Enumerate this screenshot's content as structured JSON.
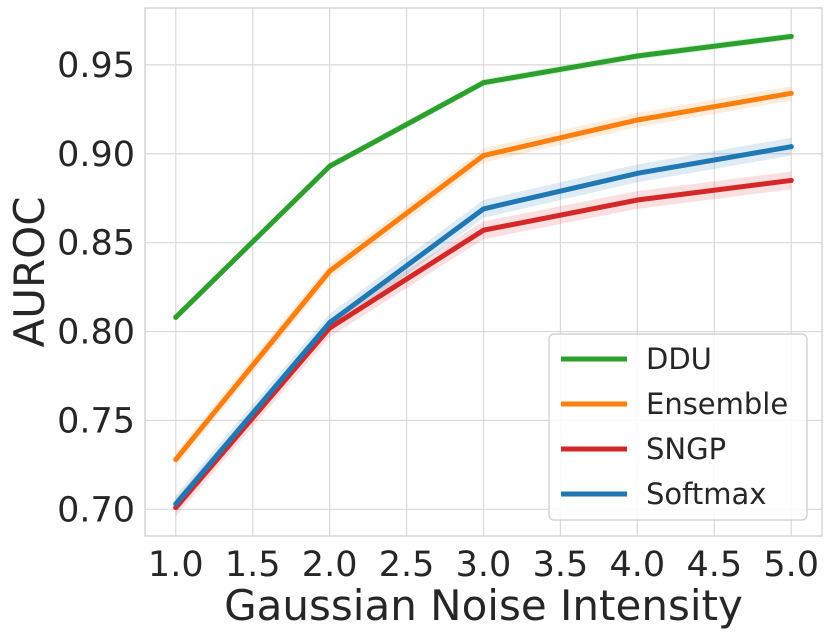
{
  "chart_data": {
    "type": "line",
    "title": "",
    "xlabel": "Gaussian Noise Intensity",
    "ylabel": "AUROC",
    "xlim": [
      0.8,
      5.2
    ],
    "ylim": [
      0.685,
      0.982
    ],
    "xticks": [
      1.0,
      1.5,
      2.0,
      2.5,
      3.0,
      3.5,
      4.0,
      4.5,
      5.0
    ],
    "xtick_labels": [
      "1.0",
      "1.5",
      "2.0",
      "2.5",
      "3.0",
      "3.5",
      "4.0",
      "4.5",
      "5.0"
    ],
    "yticks": [
      0.7,
      0.75,
      0.8,
      0.85,
      0.9,
      0.95
    ],
    "ytick_labels": [
      "0.70",
      "0.75",
      "0.80",
      "0.85",
      "0.90",
      "0.95"
    ],
    "grid": true,
    "legend_position": "lower-right",
    "x": [
      1.0,
      2.0,
      3.0,
      4.0,
      5.0
    ],
    "series": [
      {
        "name": "DDU",
        "color": "#2ca02c",
        "values": [
          0.808,
          0.893,
          0.94,
          0.955,
          0.966
        ],
        "band": 0.002
      },
      {
        "name": "Ensemble",
        "color": "#ff7f0e",
        "values": [
          0.728,
          0.834,
          0.899,
          0.919,
          0.934
        ],
        "band": 0.004
      },
      {
        "name": "SNGP",
        "color": "#d62728",
        "values": [
          0.701,
          0.802,
          0.857,
          0.874,
          0.885
        ],
        "band": 0.005
      },
      {
        "name": "Softmax",
        "color": "#1f77b4",
        "values": [
          0.703,
          0.805,
          0.869,
          0.889,
          0.904
        ],
        "band": 0.005
      }
    ]
  }
}
